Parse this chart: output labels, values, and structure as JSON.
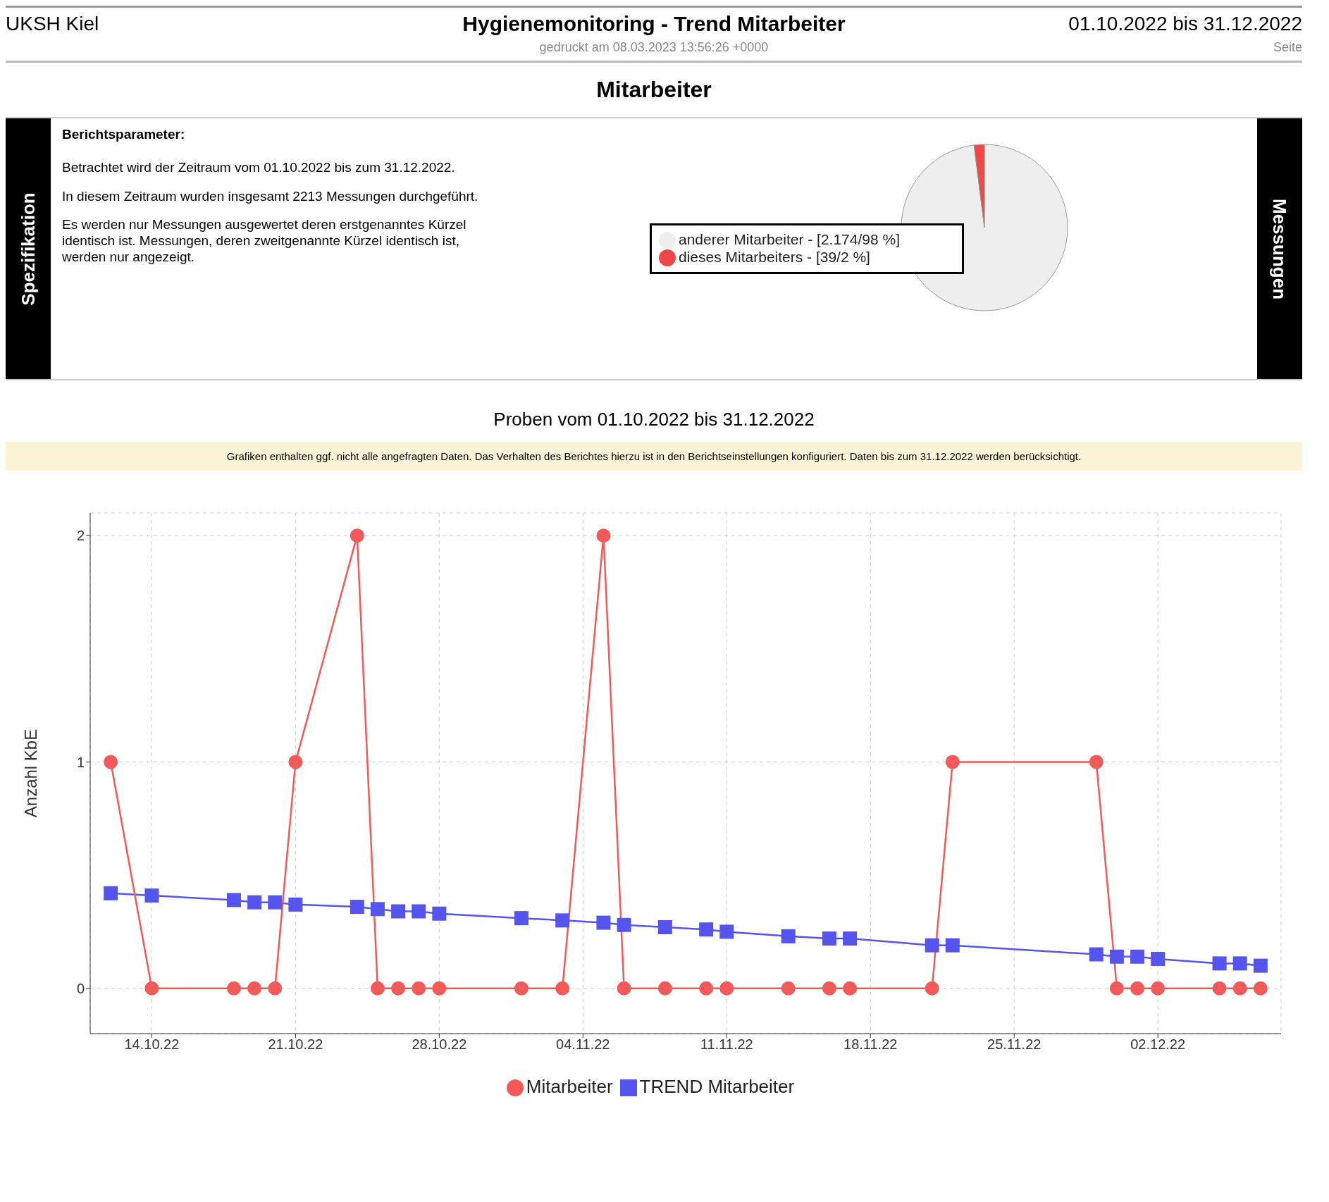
{
  "chart_data": [
    {
      "type": "pie",
      "title": "Hygienemonitoring - Trend Mitarbeiter",
      "subtitle": "Mitarbeiter",
      "legend": "left",
      "annotations": [
        "UKSH Kiel",
        "01.10.2022 bis 31.12.2022",
        "gedruckt am 08.03.2023 13:56:26 +0000",
        "Seite",
        "Spezifikation",
        "Messungen",
        "Berichtsparameter:",
        "Betrachtet wird der Zeitraum vom 01.10.2022 bis zum 31.12.2022.",
        "In diesem Zeitraum wurden insgesamt 2213 Messungen durchgeführt.",
        "Es werden nur Messungen ausgewertet deren erstgenanntes Kürzel identisch ist. Messungen, deren zweitgenannte Kürzel identisch ist, werden nur angezeigt."
      ],
      "categories": [
        "anderer Mitarbeiter - [2.174/98 %]",
        "dieses Mitarbeiters - [39/2 %]"
      ],
      "values": [
        98,
        2
      ],
      "colors": [
        "#eeeeee",
        "#f04848"
      ]
    },
    {
      "type": "line",
      "title": "Proben vom 01.10.2022 bis 31.12.2022",
      "ylabel": "Anzahl KbE",
      "legend": "bottom",
      "grid": true,
      "annotations": [
        "Grafiken enthalten ggf. nicht alle angefragten Daten. Das Verhalten des Berichtes hierzu ist in den Berichtseinstellungen konfiguriert. Daten bis zum 31.12.2022 werden berücksichtigt."
      ],
      "x": [
        "2022-10-12",
        "2022-10-14",
        "2022-10-18",
        "2022-10-19",
        "2022-10-20",
        "2022-10-21",
        "2022-10-24",
        "2022-10-25",
        "2022-10-26",
        "2022-10-27",
        "2022-10-28",
        "2022-11-01",
        "2022-11-03",
        "2022-11-05",
        "2022-11-06",
        "2022-11-08",
        "2022-11-10",
        "2022-11-11",
        "2022-11-14",
        "2022-11-16",
        "2022-11-17",
        "2022-11-21",
        "2022-11-22",
        "2022-11-29",
        "2022-11-30",
        "2022-12-01",
        "2022-12-02",
        "2022-12-05",
        "2022-12-06",
        "2022-12-07"
      ],
      "xlim": [
        "2022-10-11",
        "2022-12-08"
      ],
      "xticks": [
        {
          "value": "2022-10-14",
          "label": "14.10.22"
        },
        {
          "value": "2022-10-21",
          "label": "21.10.22"
        },
        {
          "value": "2022-10-28",
          "label": "28.10.22"
        },
        {
          "value": "2022-11-04",
          "label": "04.11.22"
        },
        {
          "value": "2022-11-11",
          "label": "11.11.22"
        },
        {
          "value": "2022-11-18",
          "label": "18.11.22"
        },
        {
          "value": "2022-11-25",
          "label": "25.11.22"
        },
        {
          "value": "2022-12-02",
          "label": "02.12.22"
        }
      ],
      "ylim": [
        -0.2,
        2.1
      ],
      "yticks": [
        0,
        1,
        2
      ],
      "series": [
        {
          "name": "TREND Mitarbeiter",
          "color": "#5555ee",
          "marker": "square",
          "line_style": "solid",
          "values": [
            0.42,
            0.41,
            0.39,
            0.38,
            0.38,
            0.37,
            0.36,
            0.35,
            0.34,
            0.34,
            0.33,
            0.31,
            0.3,
            0.29,
            0.28,
            0.27,
            0.26,
            0.25,
            0.23,
            0.22,
            0.22,
            0.19,
            0.19,
            0.15,
            0.14,
            0.14,
            0.13,
            0.11,
            0.11,
            0.1
          ]
        },
        {
          "name": "Mitarbeiter",
          "color": "#f25a5a",
          "marker": "circle",
          "line_style": "solid",
          "values": [
            1,
            0,
            0,
            0,
            0,
            1,
            2,
            0,
            0,
            0,
            0,
            0,
            0,
            2,
            0,
            0,
            0,
            0,
            0,
            0,
            0,
            0,
            1,
            1,
            0,
            0,
            0,
            0,
            0,
            0
          ]
        }
      ]
    }
  ]
}
